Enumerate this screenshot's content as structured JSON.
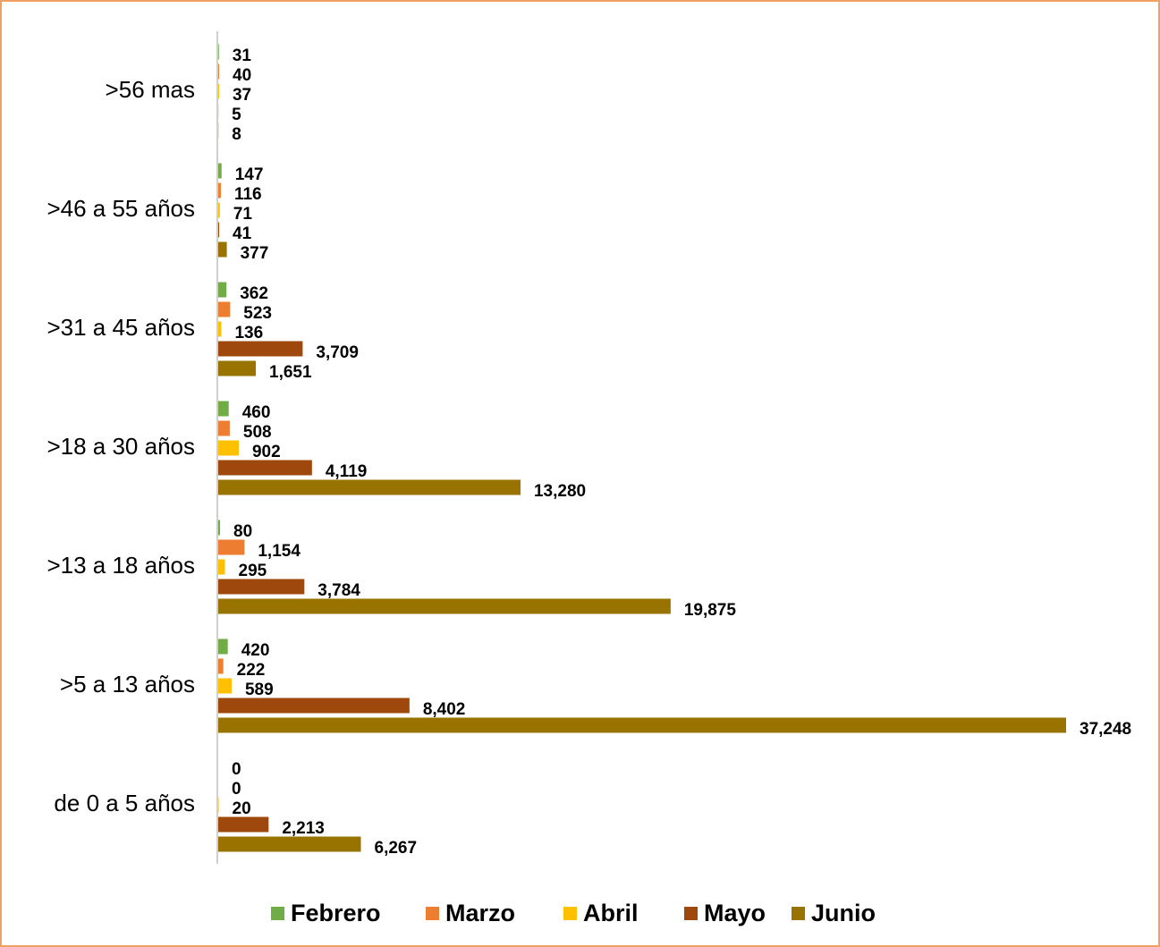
{
  "chart_data": {
    "type": "hbar",
    "categories": [
      ">56 mas",
      ">46 a 55 años",
      ">31 a 45 años",
      ">18 a 30 años",
      ">13 a 18 años",
      ">5 a 13 años",
      "de 0 a 5 años"
    ],
    "series": [
      {
        "name": "Febrero",
        "color": "#70ad47",
        "values": [
          31,
          147,
          362,
          460,
          80,
          420,
          0
        ],
        "value_labels": [
          "31",
          "147",
          "362",
          "460",
          "80",
          "420",
          "0"
        ]
      },
      {
        "name": "Marzo",
        "color": "#ed7d31",
        "values": [
          40,
          116,
          523,
          508,
          1154,
          222,
          0
        ],
        "value_labels": [
          "40",
          "116",
          "523",
          "508",
          "1,154",
          "222",
          "0"
        ]
      },
      {
        "name": "Abril",
        "color": "#ffc000",
        "values": [
          37,
          71,
          136,
          902,
          295,
          589,
          20
        ],
        "value_labels": [
          "37",
          "71",
          "136",
          "902",
          "295",
          "589",
          "20"
        ]
      },
      {
        "name": "Mayo",
        "color": "#9e480e",
        "values": [
          5,
          41,
          3709,
          4119,
          3784,
          8402,
          2213
        ],
        "value_labels": [
          "5",
          "41",
          "3,709",
          "4,119",
          "3,784",
          "8,402",
          "2,213"
        ]
      },
      {
        "name": "Junio",
        "color": "#997300",
        "values": [
          8,
          377,
          1651,
          13280,
          19875,
          37248,
          6267
        ],
        "value_labels": [
          "8",
          "377",
          "1,651",
          "13,280",
          "19,875",
          "37,248",
          "6,267"
        ]
      }
    ],
    "legend": "bottom"
  }
}
